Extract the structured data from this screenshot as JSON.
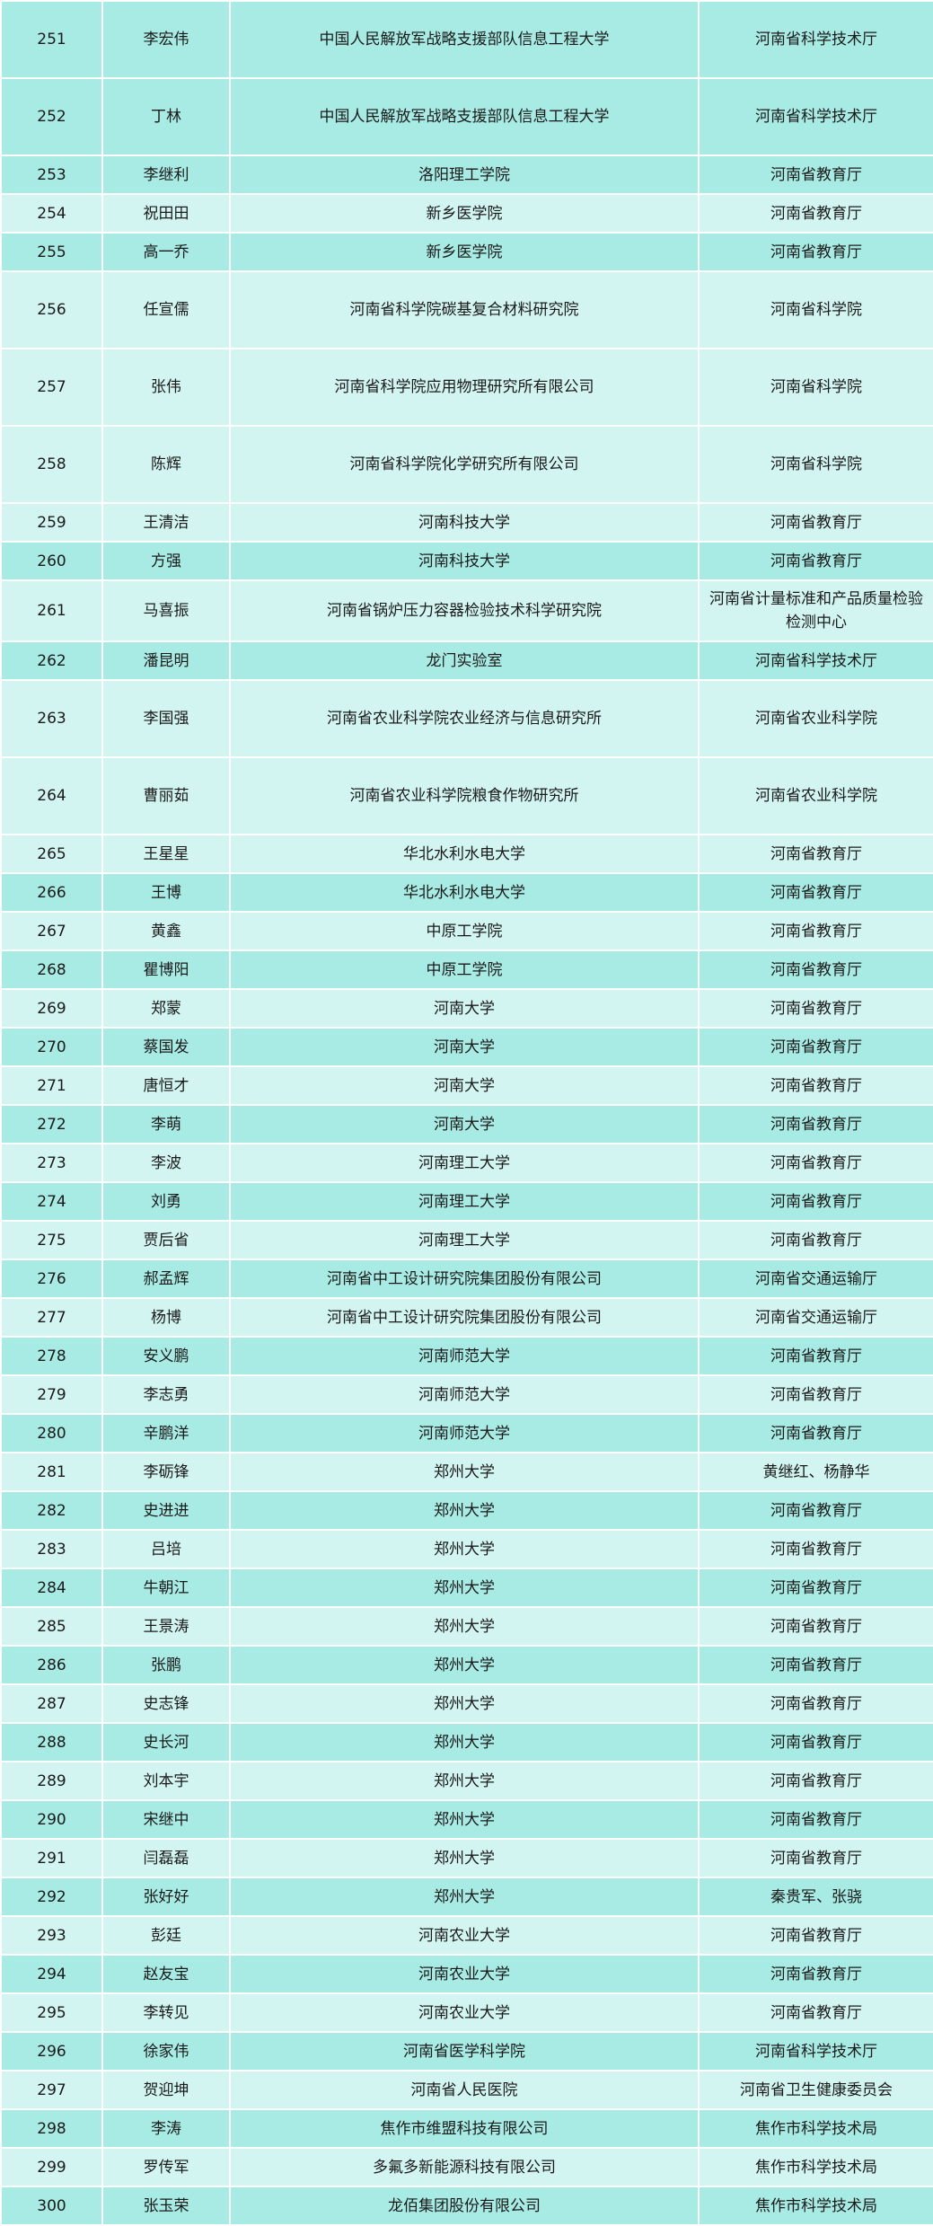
{
  "colors": {
    "row_dark": "#a8ebe4",
    "row_light": "#d3f5f2",
    "border": "#ffffff",
    "text": "#1a1a1a"
  },
  "rows": [
    [
      "251",
      "李宏伟",
      "中国人民解放军战略支援部队信息工程大学",
      "河南省科学技术厅"
    ],
    [
      "252",
      "丁林",
      "中国人民解放军战略支援部队信息工程大学",
      "河南省科学技术厅"
    ],
    [
      "253",
      "李继利",
      "洛阳理工学院",
      "河南省教育厅"
    ],
    [
      "254",
      "祝田田",
      "新乡医学院",
      "河南省教育厅"
    ],
    [
      "255",
      "高一乔",
      "新乡医学院",
      "河南省教育厅"
    ],
    [
      "256",
      "任宣儒",
      "河南省科学院碳基复合材料研究院",
      "河南省科学院"
    ],
    [
      "257",
      "张伟",
      "河南省科学院应用物理研究所有限公司",
      "河南省科学院"
    ],
    [
      "258",
      "陈辉",
      "河南省科学院化学研究所有限公司",
      "河南省科学院"
    ],
    [
      "259",
      "王清洁",
      "河南科技大学",
      "河南省教育厅"
    ],
    [
      "260",
      "方强",
      "河南科技大学",
      "河南省教育厅"
    ],
    [
      "261",
      "马喜振",
      "河南省锅炉压力容器检验技术科学研究院",
      "河南省计量标准和产品质量检验检测中心"
    ],
    [
      "262",
      "潘昆明",
      "龙门实验室",
      "河南省科学技术厅"
    ],
    [
      "263",
      "李国强",
      "河南省农业科学院农业经济与信息研究所",
      "河南省农业科学院"
    ],
    [
      "264",
      "曹丽茹",
      "河南省农业科学院粮食作物研究所",
      "河南省农业科学院"
    ],
    [
      "265",
      "王星星",
      "华北水利水电大学",
      "河南省教育厅"
    ],
    [
      "266",
      "王博",
      "华北水利水电大学",
      "河南省教育厅"
    ],
    [
      "267",
      "黄鑫",
      "中原工学院",
      "河南省教育厅"
    ],
    [
      "268",
      "瞿博阳",
      "中原工学院",
      "河南省教育厅"
    ],
    [
      "269",
      "郑蒙",
      "河南大学",
      "河南省教育厅"
    ],
    [
      "270",
      "蔡国发",
      "河南大学",
      "河南省教育厅"
    ],
    [
      "271",
      "唐恒才",
      "河南大学",
      "河南省教育厅"
    ],
    [
      "272",
      "李萌",
      "河南大学",
      "河南省教育厅"
    ],
    [
      "273",
      "李波",
      "河南理工大学",
      "河南省教育厅"
    ],
    [
      "274",
      "刘勇",
      "河南理工大学",
      "河南省教育厅"
    ],
    [
      "275",
      "贾后省",
      "河南理工大学",
      "河南省教育厅"
    ],
    [
      "276",
      "郝孟辉",
      "河南省中工设计研究院集团股份有限公司",
      "河南省交通运输厅"
    ],
    [
      "277",
      "杨博",
      "河南省中工设计研究院集团股份有限公司",
      "河南省交通运输厅"
    ],
    [
      "278",
      "安义鹏",
      "河南师范大学",
      "河南省教育厅"
    ],
    [
      "279",
      "李志勇",
      "河南师范大学",
      "河南省教育厅"
    ],
    [
      "280",
      "辛鹏洋",
      "河南师范大学",
      "河南省教育厅"
    ],
    [
      "281",
      "李砺锋",
      "郑州大学",
      "黄继红、杨静华"
    ],
    [
      "282",
      "史进进",
      "郑州大学",
      "河南省教育厅"
    ],
    [
      "283",
      "吕培",
      "郑州大学",
      "河南省教育厅"
    ],
    [
      "284",
      "牛朝江",
      "郑州大学",
      "河南省教育厅"
    ],
    [
      "285",
      "王景涛",
      "郑州大学",
      "河南省教育厅"
    ],
    [
      "286",
      "张鹏",
      "郑州大学",
      "河南省教育厅"
    ],
    [
      "287",
      "史志锋",
      "郑州大学",
      "河南省教育厅"
    ],
    [
      "288",
      "史长河",
      "郑州大学",
      "河南省教育厅"
    ],
    [
      "289",
      "刘本宇",
      "郑州大学",
      "河南省教育厅"
    ],
    [
      "290",
      "宋继中",
      "郑州大学",
      "河南省教育厅"
    ],
    [
      "291",
      "闫磊磊",
      "郑州大学",
      "河南省教育厅"
    ],
    [
      "292",
      "张好好",
      "郑州大学",
      "秦贵军、张骁"
    ],
    [
      "293",
      "彭廷",
      "河南农业大学",
      "河南省教育厅"
    ],
    [
      "294",
      "赵友宝",
      "河南农业大学",
      "河南省教育厅"
    ],
    [
      "295",
      "李转见",
      "河南农业大学",
      "河南省教育厅"
    ],
    [
      "296",
      "徐家伟",
      "河南省医学科学院",
      "河南省科学技术厅"
    ],
    [
      "297",
      "贺迎坤",
      "河南省人民医院",
      "河南省卫生健康委员会"
    ],
    [
      "298",
      "李涛",
      "焦作市维盟科技有限公司",
      "焦作市科学技术局"
    ],
    [
      "299",
      "罗传军",
      "多氟多新能源科技有限公司",
      "焦作市科学技术局"
    ],
    [
      "300",
      "张玉荣",
      "龙佰集团股份有限公司",
      "焦作市科学技术局"
    ]
  ]
}
